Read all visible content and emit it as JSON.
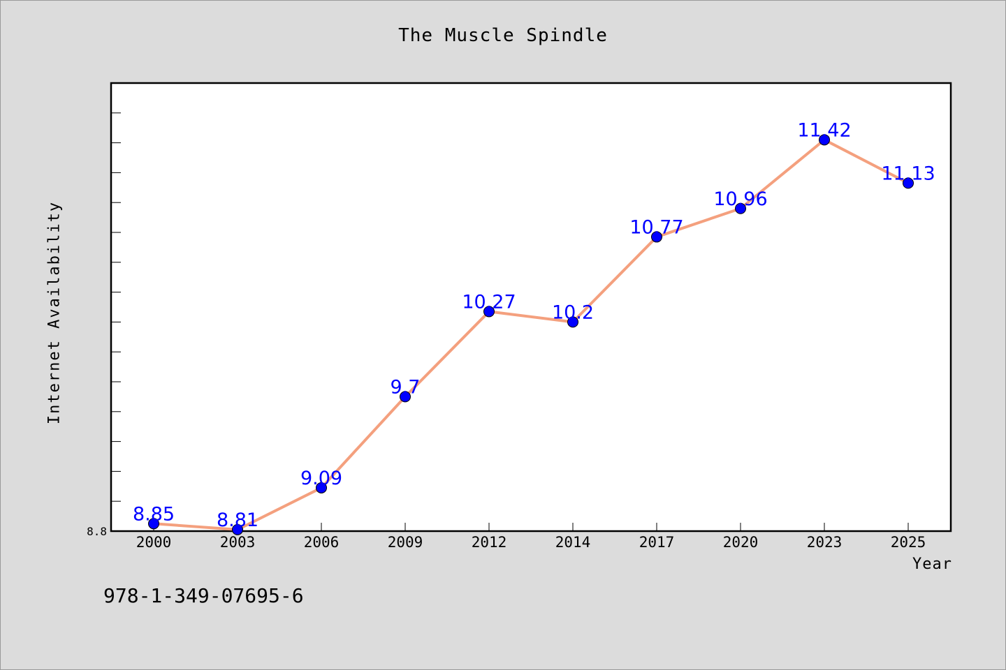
{
  "chart_data": {
    "type": "line",
    "title": "The Muscle Spindle",
    "xlabel": "Year",
    "ylabel": "Internet Availability",
    "categories": [
      "2000",
      "2003",
      "2006",
      "2009",
      "2012",
      "2014",
      "2017",
      "2020",
      "2023",
      "2025"
    ],
    "values": [
      8.85,
      8.81,
      9.09,
      9.7,
      10.27,
      10.2,
      10.77,
      10.96,
      11.42,
      11.13
    ],
    "data_labels": [
      "8.85",
      "8.81",
      "9.09",
      "9.7",
      "10.27",
      "10.2",
      "10.77",
      "10.96",
      "11.42",
      "11.13"
    ],
    "ylim": [
      8.8,
      11.8
    ],
    "y_tick_labels": [
      "8.8"
    ],
    "grid": false,
    "legend": "none",
    "line_color": "#f4a07e",
    "marker_color": "#0000ff",
    "label_color": "#0000ff"
  },
  "footer": {
    "text": "978-1-349-07695-6"
  }
}
